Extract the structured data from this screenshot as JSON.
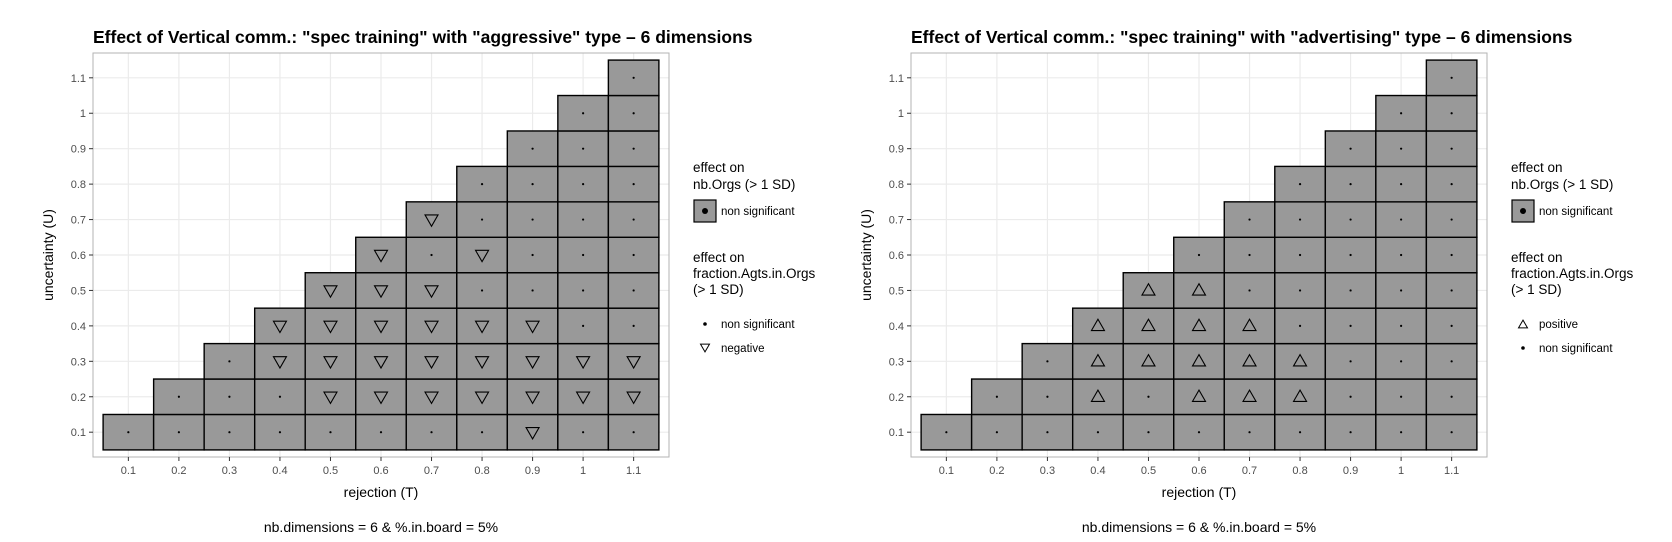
{
  "colors": {
    "tile_fill": "#999999",
    "tile_border": "#000000",
    "panel_border": "#b3b3b3",
    "grid": "#ebebeb",
    "tick_text": "#4d4d4d"
  },
  "chart_data": [
    {
      "type": "heatmap",
      "title": "Effect of Vertical comm.: \"spec training\" with \"aggressive\" type – 6 dimensions",
      "xlabel": "rejection (T)",
      "ylabel": "uncertainty (U)",
      "caption": "nb.dimensions = 6 & %.in.board = 5%",
      "x_ticks": [
        "0.1",
        "0.2",
        "0.3",
        "0.4",
        "0.5",
        "0.6",
        "0.7",
        "0.8",
        "0.9",
        "1",
        "1.1"
      ],
      "y_ticks": [
        "0.1",
        "0.2",
        "0.3",
        "0.4",
        "0.5",
        "0.6",
        "0.7",
        "0.8",
        "0.9",
        "1",
        "1.1"
      ],
      "xlim": [
        0.03,
        1.17
      ],
      "ylim": [
        0.03,
        1.17
      ],
      "grid": true,
      "legend_position": "right",
      "legend_fill": {
        "title": "effect on\nnb.Orgs (> 1 SD)",
        "items": [
          {
            "label": "non significant",
            "symbol": "dot"
          }
        ]
      },
      "legend_shape": {
        "title": "effect on\nfraction.Agts.in.Orgs\n(> 1 SD)",
        "items": [
          {
            "label": "non significant",
            "symbol": "dot"
          },
          {
            "label": "negative",
            "symbol": "down-triangle"
          }
        ]
      },
      "nb_orgs_effect_all_cells": "non significant",
      "cells": [
        {
          "T": 0.1,
          "U": 0.1,
          "effect": "non significant"
        },
        {
          "T": 0.2,
          "U": 0.1,
          "effect": "non significant"
        },
        {
          "T": 0.2,
          "U": 0.2,
          "effect": "non significant"
        },
        {
          "T": 0.3,
          "U": 0.1,
          "effect": "non significant"
        },
        {
          "T": 0.3,
          "U": 0.2,
          "effect": "non significant"
        },
        {
          "T": 0.3,
          "U": 0.3,
          "effect": "non significant"
        },
        {
          "T": 0.4,
          "U": 0.1,
          "effect": "non significant"
        },
        {
          "T": 0.4,
          "U": 0.2,
          "effect": "non significant"
        },
        {
          "T": 0.4,
          "U": 0.3,
          "effect": "negative"
        },
        {
          "T": 0.4,
          "U": 0.4,
          "effect": "negative"
        },
        {
          "T": 0.5,
          "U": 0.1,
          "effect": "non significant"
        },
        {
          "T": 0.5,
          "U": 0.2,
          "effect": "negative"
        },
        {
          "T": 0.5,
          "U": 0.3,
          "effect": "negative"
        },
        {
          "T": 0.5,
          "U": 0.4,
          "effect": "negative"
        },
        {
          "T": 0.5,
          "U": 0.5,
          "effect": "negative"
        },
        {
          "T": 0.6,
          "U": 0.1,
          "effect": "non significant"
        },
        {
          "T": 0.6,
          "U": 0.2,
          "effect": "negative"
        },
        {
          "T": 0.6,
          "U": 0.3,
          "effect": "negative"
        },
        {
          "T": 0.6,
          "U": 0.4,
          "effect": "negative"
        },
        {
          "T": 0.6,
          "U": 0.5,
          "effect": "negative"
        },
        {
          "T": 0.6,
          "U": 0.6,
          "effect": "negative"
        },
        {
          "T": 0.7,
          "U": 0.1,
          "effect": "non significant"
        },
        {
          "T": 0.7,
          "U": 0.2,
          "effect": "negative"
        },
        {
          "T": 0.7,
          "U": 0.3,
          "effect": "negative"
        },
        {
          "T": 0.7,
          "U": 0.4,
          "effect": "negative"
        },
        {
          "T": 0.7,
          "U": 0.5,
          "effect": "negative"
        },
        {
          "T": 0.7,
          "U": 0.6,
          "effect": "non significant"
        },
        {
          "T": 0.7,
          "U": 0.7,
          "effect": "negative"
        },
        {
          "T": 0.8,
          "U": 0.1,
          "effect": "non significant"
        },
        {
          "T": 0.8,
          "U": 0.2,
          "effect": "negative"
        },
        {
          "T": 0.8,
          "U": 0.3,
          "effect": "negative"
        },
        {
          "T": 0.8,
          "U": 0.4,
          "effect": "negative"
        },
        {
          "T": 0.8,
          "U": 0.5,
          "effect": "non significant"
        },
        {
          "T": 0.8,
          "U": 0.6,
          "effect": "negative"
        },
        {
          "T": 0.8,
          "U": 0.7,
          "effect": "non significant"
        },
        {
          "T": 0.8,
          "U": 0.8,
          "effect": "non significant"
        },
        {
          "T": 0.9,
          "U": 0.1,
          "effect": "negative"
        },
        {
          "T": 0.9,
          "U": 0.2,
          "effect": "negative"
        },
        {
          "T": 0.9,
          "U": 0.3,
          "effect": "negative"
        },
        {
          "T": 0.9,
          "U": 0.4,
          "effect": "negative"
        },
        {
          "T": 0.9,
          "U": 0.5,
          "effect": "non significant"
        },
        {
          "T": 0.9,
          "U": 0.6,
          "effect": "non significant"
        },
        {
          "T": 0.9,
          "U": 0.7,
          "effect": "non significant"
        },
        {
          "T": 0.9,
          "U": 0.8,
          "effect": "non significant"
        },
        {
          "T": 0.9,
          "U": 0.9,
          "effect": "non significant"
        },
        {
          "T": 1.0,
          "U": 0.1,
          "effect": "non significant"
        },
        {
          "T": 1.0,
          "U": 0.2,
          "effect": "negative"
        },
        {
          "T": 1.0,
          "U": 0.3,
          "effect": "negative"
        },
        {
          "T": 1.0,
          "U": 0.4,
          "effect": "non significant"
        },
        {
          "T": 1.0,
          "U": 0.5,
          "effect": "non significant"
        },
        {
          "T": 1.0,
          "U": 0.6,
          "effect": "non significant"
        },
        {
          "T": 1.0,
          "U": 0.7,
          "effect": "non significant"
        },
        {
          "T": 1.0,
          "U": 0.8,
          "effect": "non significant"
        },
        {
          "T": 1.0,
          "U": 0.9,
          "effect": "non significant"
        },
        {
          "T": 1.0,
          "U": 1.0,
          "effect": "non significant"
        },
        {
          "T": 1.1,
          "U": 0.1,
          "effect": "non significant"
        },
        {
          "T": 1.1,
          "U": 0.2,
          "effect": "negative"
        },
        {
          "T": 1.1,
          "U": 0.3,
          "effect": "negative"
        },
        {
          "T": 1.1,
          "U": 0.4,
          "effect": "non significant"
        },
        {
          "T": 1.1,
          "U": 0.5,
          "effect": "non significant"
        },
        {
          "T": 1.1,
          "U": 0.6,
          "effect": "non significant"
        },
        {
          "T": 1.1,
          "U": 0.7,
          "effect": "non significant"
        },
        {
          "T": 1.1,
          "U": 0.8,
          "effect": "non significant"
        },
        {
          "T": 1.1,
          "U": 0.9,
          "effect": "non significant"
        },
        {
          "T": 1.1,
          "U": 1.0,
          "effect": "non significant"
        },
        {
          "T": 1.1,
          "U": 1.1,
          "effect": "non significant"
        }
      ]
    },
    {
      "type": "heatmap",
      "title": "Effect of Vertical comm.: \"spec training\" with \"advertising\" type – 6 dimensions",
      "xlabel": "rejection (T)",
      "ylabel": "uncertainty (U)",
      "caption": "nb.dimensions = 6 & %.in.board = 5%",
      "x_ticks": [
        "0.1",
        "0.2",
        "0.3",
        "0.4",
        "0.5",
        "0.6",
        "0.7",
        "0.8",
        "0.9",
        "1",
        "1.1"
      ],
      "y_ticks": [
        "0.1",
        "0.2",
        "0.3",
        "0.4",
        "0.5",
        "0.6",
        "0.7",
        "0.8",
        "0.9",
        "1",
        "1.1"
      ],
      "xlim": [
        0.03,
        1.17
      ],
      "ylim": [
        0.03,
        1.17
      ],
      "grid": true,
      "legend_position": "right",
      "legend_fill": {
        "title": "effect on\nnb.Orgs (> 1 SD)",
        "items": [
          {
            "label": "non significant",
            "symbol": "dot"
          }
        ]
      },
      "legend_shape": {
        "title": "effect on\nfraction.Agts.in.Orgs\n(> 1 SD)",
        "items": [
          {
            "label": "positive",
            "symbol": "up-triangle"
          },
          {
            "label": "non significant",
            "symbol": "dot"
          }
        ]
      },
      "nb_orgs_effect_all_cells": "non significant",
      "cells": [
        {
          "T": 0.1,
          "U": 0.1,
          "effect": "non significant"
        },
        {
          "T": 0.2,
          "U": 0.1,
          "effect": "non significant"
        },
        {
          "T": 0.2,
          "U": 0.2,
          "effect": "non significant"
        },
        {
          "T": 0.3,
          "U": 0.1,
          "effect": "non significant"
        },
        {
          "T": 0.3,
          "U": 0.2,
          "effect": "non significant"
        },
        {
          "T": 0.3,
          "U": 0.3,
          "effect": "non significant"
        },
        {
          "T": 0.4,
          "U": 0.1,
          "effect": "non significant"
        },
        {
          "T": 0.4,
          "U": 0.2,
          "effect": "positive"
        },
        {
          "T": 0.4,
          "U": 0.3,
          "effect": "positive"
        },
        {
          "T": 0.4,
          "U": 0.4,
          "effect": "positive"
        },
        {
          "T": 0.5,
          "U": 0.1,
          "effect": "non significant"
        },
        {
          "T": 0.5,
          "U": 0.2,
          "effect": "non significant"
        },
        {
          "T": 0.5,
          "U": 0.3,
          "effect": "positive"
        },
        {
          "T": 0.5,
          "U": 0.4,
          "effect": "positive"
        },
        {
          "T": 0.5,
          "U": 0.5,
          "effect": "positive"
        },
        {
          "T": 0.6,
          "U": 0.1,
          "effect": "non significant"
        },
        {
          "T": 0.6,
          "U": 0.2,
          "effect": "positive"
        },
        {
          "T": 0.6,
          "U": 0.3,
          "effect": "positive"
        },
        {
          "T": 0.6,
          "U": 0.4,
          "effect": "positive"
        },
        {
          "T": 0.6,
          "U": 0.5,
          "effect": "positive"
        },
        {
          "T": 0.6,
          "U": 0.6,
          "effect": "non significant"
        },
        {
          "T": 0.7,
          "U": 0.1,
          "effect": "non significant"
        },
        {
          "T": 0.7,
          "U": 0.2,
          "effect": "positive"
        },
        {
          "T": 0.7,
          "U": 0.3,
          "effect": "positive"
        },
        {
          "T": 0.7,
          "U": 0.4,
          "effect": "positive"
        },
        {
          "T": 0.7,
          "U": 0.5,
          "effect": "non significant"
        },
        {
          "T": 0.7,
          "U": 0.6,
          "effect": "non significant"
        },
        {
          "T": 0.7,
          "U": 0.7,
          "effect": "non significant"
        },
        {
          "T": 0.8,
          "U": 0.1,
          "effect": "non significant"
        },
        {
          "T": 0.8,
          "U": 0.2,
          "effect": "positive"
        },
        {
          "T": 0.8,
          "U": 0.3,
          "effect": "positive"
        },
        {
          "T": 0.8,
          "U": 0.4,
          "effect": "non significant"
        },
        {
          "T": 0.8,
          "U": 0.5,
          "effect": "non significant"
        },
        {
          "T": 0.8,
          "U": 0.6,
          "effect": "non significant"
        },
        {
          "T": 0.8,
          "U": 0.7,
          "effect": "non significant"
        },
        {
          "T": 0.8,
          "U": 0.8,
          "effect": "non significant"
        },
        {
          "T": 0.9,
          "U": 0.1,
          "effect": "non significant"
        },
        {
          "T": 0.9,
          "U": 0.2,
          "effect": "non significant"
        },
        {
          "T": 0.9,
          "U": 0.3,
          "effect": "non significant"
        },
        {
          "T": 0.9,
          "U": 0.4,
          "effect": "non significant"
        },
        {
          "T": 0.9,
          "U": 0.5,
          "effect": "non significant"
        },
        {
          "T": 0.9,
          "U": 0.6,
          "effect": "non significant"
        },
        {
          "T": 0.9,
          "U": 0.7,
          "effect": "non significant"
        },
        {
          "T": 0.9,
          "U": 0.8,
          "effect": "non significant"
        },
        {
          "T": 0.9,
          "U": 0.9,
          "effect": "non significant"
        },
        {
          "T": 1.0,
          "U": 0.1,
          "effect": "non significant"
        },
        {
          "T": 1.0,
          "U": 0.2,
          "effect": "non significant"
        },
        {
          "T": 1.0,
          "U": 0.3,
          "effect": "non significant"
        },
        {
          "T": 1.0,
          "U": 0.4,
          "effect": "non significant"
        },
        {
          "T": 1.0,
          "U": 0.5,
          "effect": "non significant"
        },
        {
          "T": 1.0,
          "U": 0.6,
          "effect": "non significant"
        },
        {
          "T": 1.0,
          "U": 0.7,
          "effect": "non significant"
        },
        {
          "T": 1.0,
          "U": 0.8,
          "effect": "non significant"
        },
        {
          "T": 1.0,
          "U": 0.9,
          "effect": "non significant"
        },
        {
          "T": 1.0,
          "U": 1.0,
          "effect": "non significant"
        },
        {
          "T": 1.1,
          "U": 0.1,
          "effect": "non significant"
        },
        {
          "T": 1.1,
          "U": 0.2,
          "effect": "non significant"
        },
        {
          "T": 1.1,
          "U": 0.3,
          "effect": "non significant"
        },
        {
          "T": 1.1,
          "U": 0.4,
          "effect": "non significant"
        },
        {
          "T": 1.1,
          "U": 0.5,
          "effect": "non significant"
        },
        {
          "T": 1.1,
          "U": 0.6,
          "effect": "non significant"
        },
        {
          "T": 1.1,
          "U": 0.7,
          "effect": "non significant"
        },
        {
          "T": 1.1,
          "U": 0.8,
          "effect": "non significant"
        },
        {
          "T": 1.1,
          "U": 0.9,
          "effect": "non significant"
        },
        {
          "T": 1.1,
          "U": 1.0,
          "effect": "non significant"
        },
        {
          "T": 1.1,
          "U": 1.1,
          "effect": "non significant"
        }
      ]
    }
  ]
}
